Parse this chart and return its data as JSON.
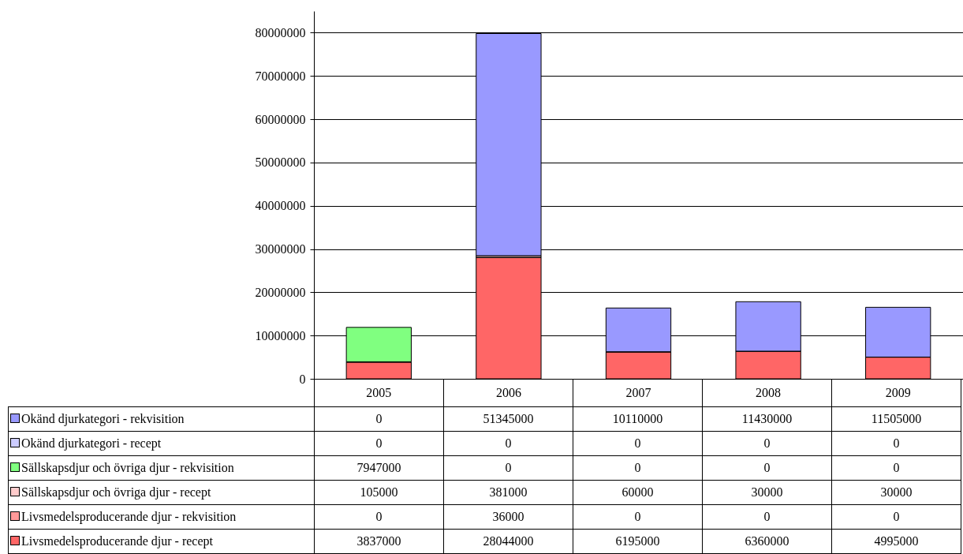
{
  "chart_data": {
    "type": "bar",
    "stacked": true,
    "categories": [
      "2005",
      "2006",
      "2007",
      "2008",
      "2009"
    ],
    "series": [
      {
        "name": "Livsmedelsproducerande djur - recept",
        "color": "#ff6666",
        "values": [
          3837000,
          28044000,
          6195000,
          6360000,
          4995000
        ]
      },
      {
        "name": "Livsmedelsproducerande djur - rekvisition",
        "color": "#ff9999",
        "values": [
          0,
          36000,
          0,
          0,
          0
        ]
      },
      {
        "name": "Sällskapsdjur och övriga djur - recept",
        "color": "#ffcccc",
        "values": [
          105000,
          381000,
          60000,
          30000,
          30000
        ]
      },
      {
        "name": "Sällskapsdjur och övriga djur - rekvisition",
        "color": "#80ff80",
        "values": [
          7947000,
          0,
          0,
          0,
          0
        ]
      },
      {
        "name": "Okänd djurkategori - recept",
        "color": "#ccccff",
        "values": [
          0,
          0,
          0,
          0,
          0
        ]
      },
      {
        "name": "Okänd djurkategori - rekvisition",
        "color": "#9999ff",
        "values": [
          0,
          51345000,
          10110000,
          11430000,
          11505000
        ]
      }
    ],
    "ylim": [
      0,
      85000000
    ],
    "yticks": [
      0,
      10000000,
      20000000,
      30000000,
      40000000,
      50000000,
      60000000,
      70000000,
      80000000
    ],
    "grid": "y",
    "legend": "bottom left",
    "data_labels": true
  }
}
